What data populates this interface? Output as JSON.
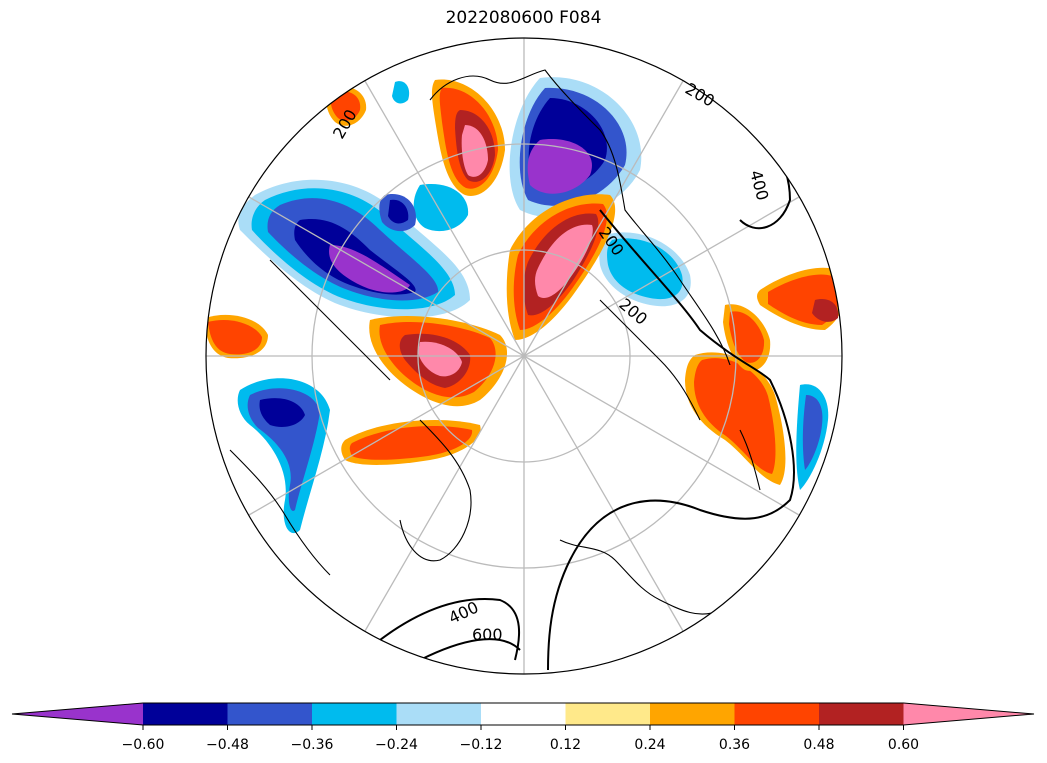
{
  "title": "2022080600 F084",
  "colors": {
    "lt_neg_0_60": "#9933cc",
    "neg_0_60_to_neg_0_48": "#000099",
    "neg_0_48_to_neg_0_36": "#3355cc",
    "neg_0_36_to_neg_0_24": "#00bbee",
    "neg_0_24_to_neg_0_12": "#aaddf7",
    "neutral": "#ffffff",
    "pos_0_12_to_pos_0_24": "#ffe98a",
    "pos_0_24_to_pos_0_36": "#ffa500",
    "pos_0_36_to_pos_0_48": "#ff4400",
    "pos_0_48_to_pos_0_60": "#b22222",
    "gt_pos_0_60": "#ff88aa"
  },
  "colorbar": {
    "ticks": [
      "−0.60",
      "−0.48",
      "−0.36",
      "−0.24",
      "−0.12",
      "0.12",
      "0.24",
      "0.36",
      "0.48",
      "0.60"
    ],
    "extend": "both"
  },
  "contour_labels": [
    "200",
    "400",
    "200",
    "200",
    "200",
    "400",
    "600"
  ]
}
